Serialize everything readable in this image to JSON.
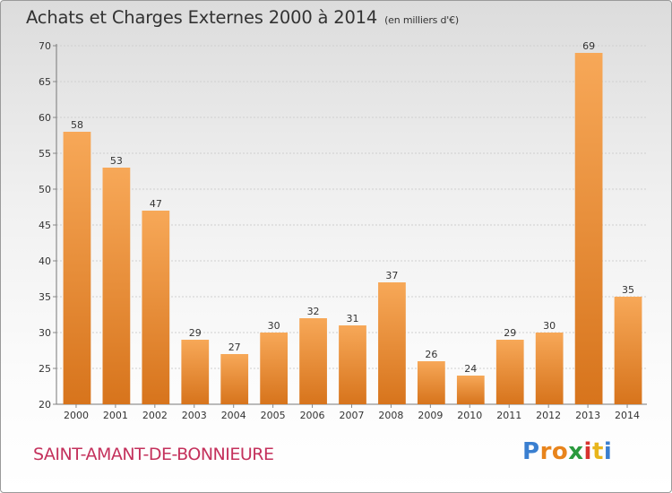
{
  "title": "Achats et Charges Externes 2000 à 2014",
  "unit": "(en milliers d'€)",
  "commune": "SAINT-AMANT-DE-BONNIEURE",
  "logo": {
    "letters": [
      "P",
      "r",
      "o",
      "x",
      "i",
      "t",
      "i"
    ],
    "colors": [
      "#3a7fd0",
      "#e8841c",
      "#e8841c",
      "#2b9a3e",
      "#d8332f",
      "#e8b51c",
      "#3a7fd0"
    ]
  },
  "colors": {
    "bar_light": "#f7a858",
    "bar_dark": "#d7741c",
    "grid": "#cfcfcf",
    "axis_text": "#333333"
  },
  "chart_data": {
    "type": "bar",
    "categories": [
      "2000",
      "2001",
      "2002",
      "2003",
      "2004",
      "2005",
      "2006",
      "2007",
      "2008",
      "2009",
      "2010",
      "2011",
      "2012",
      "2013",
      "2014"
    ],
    "values": [
      58,
      53,
      47,
      29,
      27,
      30,
      32,
      31,
      37,
      26,
      24,
      29,
      30,
      69,
      35
    ],
    "ylim": [
      20,
      70
    ],
    "yticks": [
      20,
      25,
      30,
      35,
      40,
      45,
      50,
      55,
      60,
      65,
      70
    ],
    "grid": true,
    "data_labels": true,
    "legend": "none"
  }
}
